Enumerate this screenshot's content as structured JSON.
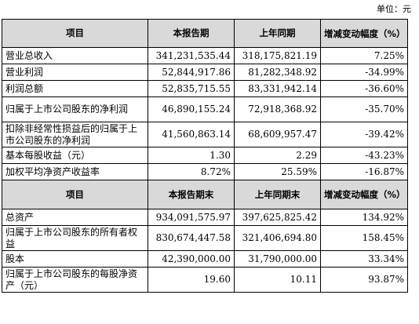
{
  "unit_label": "单位：元",
  "section1": {
    "headers": [
      "项目",
      "本报告期",
      "上年同期",
      "增减变动幅度（%）"
    ],
    "rows": [
      [
        "营业总收入",
        "341,231,535.44",
        "318,175,821.19",
        "7.25%"
      ],
      [
        "营业利润",
        "52,844,917.86",
        "81,282,348.92",
        "-34.99%"
      ],
      [
        "利润总额",
        "52,835,715.55",
        "83,331,942.14",
        "-36.60%"
      ],
      [
        "归属于上市公司股东的净利润",
        "46,890,155.24",
        "72,918,368.92",
        "-35.70%"
      ],
      [
        "扣除非经常性损益后的归属于上市公司股东的净利润",
        "41,560,863.14",
        "68,609,957.47",
        "-39.42%"
      ],
      [
        "基本每股收益（元）",
        "1.30",
        "2.29",
        "-43.23%"
      ],
      [
        "加权平均净资产收益率",
        "8.72%",
        "25.59%",
        "-16.87%"
      ]
    ]
  },
  "section2": {
    "headers": [
      "项目",
      "本报告期末",
      "上年同期末",
      "增减变动幅度（%）"
    ],
    "rows": [
      [
        "总资产",
        "934,091,575.97",
        "397,625,825.42",
        "134.92%"
      ],
      [
        "归属于上市公司股东的所有者权益",
        "830,674,447.58",
        "321,406,694.80",
        "158.45%"
      ],
      [
        "股本",
        "42,390,000.00",
        "31,790,000.00",
        "33.34%"
      ],
      [
        "归属于上市公司股东的每股净资产（元）",
        "19.60",
        "10.11",
        "93.87%"
      ]
    ]
  }
}
